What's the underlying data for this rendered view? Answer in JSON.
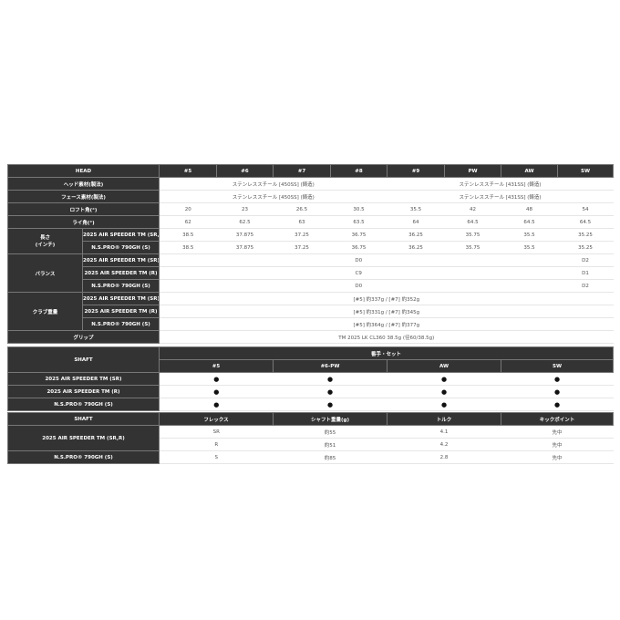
{
  "head_table": {
    "columns": [
      "HEAD",
      "#5",
      "#6",
      "#7",
      "#8",
      "#9",
      "PW",
      "AW",
      "SW"
    ],
    "head_material": {
      "label": "ヘッド素材(製法)",
      "values": [
        "ステンレススチール [450SS] (鋳造)",
        "ステンレススチール [431SS] (鋳造)"
      ]
    },
    "face_material": {
      "label": "フェース素材(製法)",
      "values": [
        "ステンレススチール [450SS] (鋳造)",
        "ステンレススチール [431SS] (鋳造)"
      ]
    },
    "loft": {
      "label": "ロフト角(°)",
      "values": [
        "20",
        "23",
        "26.5",
        "30.5",
        "35.5",
        "42",
        "48",
        "54"
      ]
    },
    "lie": {
      "label": "ライ角(°)",
      "values": [
        "62",
        "62.5",
        "63",
        "63.5",
        "64",
        "64.5",
        "64.5",
        "64.5"
      ]
    },
    "length": {
      "label": "長さ\n(インチ)",
      "rows": [
        {
          "shaft": "2025 AIR SPEEDER TM (SR,R)",
          "values": [
            "38.5",
            "37.875",
            "37.25",
            "36.75",
            "36.25",
            "35.75",
            "35.5",
            "35.25"
          ]
        },
        {
          "shaft": "N.S.PRO® 790GH (S)",
          "values": [
            "38.5",
            "37.875",
            "37.25",
            "36.75",
            "36.25",
            "35.75",
            "35.5",
            "35.25"
          ]
        }
      ]
    },
    "balance": {
      "label": "バランス",
      "rows": [
        {
          "shaft": "2025 AIR SPEEDER TM (SR)",
          "values": [
            "D0",
            "D2"
          ]
        },
        {
          "shaft": "2025 AIR SPEEDER TM (R)",
          "values": [
            "C9",
            "D1"
          ]
        },
        {
          "shaft": "N.S.PRO® 790GH (S)",
          "values": [
            "D0",
            "D2"
          ]
        }
      ]
    },
    "weight": {
      "label": "クラブ重量",
      "rows": [
        {
          "shaft": "2025 AIR SPEEDER TM (SR)",
          "value": "[#5] 約337g / [#7] 約352g"
        },
        {
          "shaft": "2025 AIR SPEEDER TM (R)",
          "value": "[#5] 約331g / [#7] 約345g"
        },
        {
          "shaft": "N.S.PRO® 790GH (S)",
          "value": "[#5] 約364g / [#7] 約377g"
        }
      ]
    },
    "grip": {
      "label": "グリップ",
      "value": "TM 2025 LK CL360 38.5g (径60/38.5g)"
    }
  },
  "shaft_table": {
    "label": "SHAFT",
    "group": "番手・セット",
    "columns": [
      "#5",
      "#6-PW",
      "AW",
      "SW"
    ],
    "rows": [
      {
        "shaft": "2025 AIR SPEEDER TM (SR)",
        "values": [
          "●",
          "●",
          "●",
          "●"
        ]
      },
      {
        "shaft": "2025 AIR SPEEDER TM (R)",
        "values": [
          "●",
          "●",
          "●",
          "●"
        ]
      },
      {
        "shaft": "N.S.PRO® 790GH (S)",
        "values": [
          "●",
          "●",
          "●",
          "●"
        ]
      }
    ]
  },
  "spec_table": {
    "columns": [
      "SHAFT",
      "フレックス",
      "シャフト重量(g)",
      "トルク",
      "キックポイント"
    ],
    "rows": [
      {
        "shaft": "2025 AIR SPEEDER TM (SR,R)",
        "values": [
          "SR",
          "約55",
          "4.1",
          "先中"
        ]
      },
      {
        "values": [
          "R",
          "約51",
          "4.2",
          "先中"
        ]
      },
      {
        "shaft": "N.S.PRO® 790GH (S)",
        "values": [
          "S",
          "約85",
          "2.8",
          "先中"
        ]
      }
    ]
  }
}
